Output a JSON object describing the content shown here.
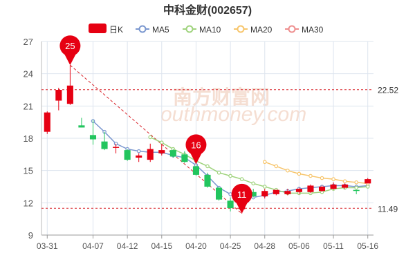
{
  "chart_data": {
    "type": "candlestick",
    "title": "中科金财(002657)",
    "colors": {
      "up": "#e60012",
      "down": "#22c55e",
      "ma5": "#7a97cf",
      "ma10": "#9fd37d",
      "ma20": "#f7c56b",
      "ma30": "#ee8e8e",
      "ref_line": "#d9232a",
      "grid": "#dde4ee",
      "badge": "#e60012"
    },
    "legend": [
      {
        "key": "kline",
        "label": "日K"
      },
      {
        "key": "ma5",
        "label": "MA5"
      },
      {
        "key": "ma10",
        "label": "MA10"
      },
      {
        "key": "ma20",
        "label": "MA20"
      },
      {
        "key": "ma30",
        "label": "MA30"
      }
    ],
    "legend_placement": "top-center",
    "ylim": [
      9,
      27
    ],
    "yticks": [
      9,
      12,
      15,
      18,
      21,
      24,
      27
    ],
    "xticks": [
      {
        "label": "03-31",
        "index": 0
      },
      {
        "label": "04-07",
        "index": 4
      },
      {
        "label": "04-12",
        "index": 7
      },
      {
        "label": "04-15",
        "index": 10
      },
      {
        "label": "04-20",
        "index": 13
      },
      {
        "label": "04-25",
        "index": 16
      },
      {
        "label": "04-28",
        "index": 19
      },
      {
        "label": "05-06",
        "index": 22
      },
      {
        "label": "05-11",
        "index": 25
      },
      {
        "label": "05-16",
        "index": 28
      }
    ],
    "grid": true,
    "candles": [
      {
        "o": 18.6,
        "c": 20.4,
        "h": 20.5,
        "l": 18.4
      },
      {
        "o": 21.5,
        "c": 22.5,
        "h": 22.7,
        "l": 20.6
      },
      {
        "o": 21.2,
        "c": 22.9,
        "h": 24.8,
        "l": 21.1
      },
      {
        "o": 19.2,
        "c": 19.0,
        "h": 19.9,
        "l": 19.0
      },
      {
        "o": 18.3,
        "c": 17.9,
        "h": 19.7,
        "l": 17.4
      },
      {
        "o": 17.7,
        "c": 17.0,
        "h": 18.6,
        "l": 16.9
      },
      {
        "o": 17.2,
        "c": 17.2,
        "h": 17.5,
        "l": 16.6
      },
      {
        "o": 16.9,
        "c": 16.0,
        "h": 17.0,
        "l": 15.9
      },
      {
        "o": 16.2,
        "c": 16.4,
        "h": 16.6,
        "l": 15.8
      },
      {
        "o": 16.0,
        "c": 17.0,
        "h": 17.5,
        "l": 15.8
      },
      {
        "o": 16.6,
        "c": 16.9,
        "h": 17.5,
        "l": 16.4
      },
      {
        "o": 16.9,
        "c": 16.3,
        "h": 17.0,
        "l": 16.2
      },
      {
        "o": 16.5,
        "c": 15.8,
        "h": 16.8,
        "l": 15.7
      },
      {
        "o": 15.4,
        "c": 14.6,
        "h": 15.6,
        "l": 14.5
      },
      {
        "o": 14.6,
        "c": 13.5,
        "h": 14.8,
        "l": 13.4
      },
      {
        "o": 13.4,
        "c": 12.3,
        "h": 13.5,
        "l": 12.2
      },
      {
        "o": 12.2,
        "c": 11.5,
        "h": 12.5,
        "l": 11.2
      },
      {
        "o": 11.4,
        "c": 12.5,
        "h": 12.8,
        "l": 11.0
      },
      {
        "o": 13.0,
        "c": 12.6,
        "h": 13.3,
        "l": 12.5
      },
      {
        "o": 12.6,
        "c": 13.1,
        "h": 13.3,
        "l": 12.4
      },
      {
        "o": 12.8,
        "c": 13.2,
        "h": 13.2,
        "l": 12.7
      },
      {
        "o": 12.8,
        "c": 13.1,
        "h": 13.3,
        "l": 12.7
      },
      {
        "o": 13.0,
        "c": 13.3,
        "h": 13.4,
        "l": 12.8
      },
      {
        "o": 13.0,
        "c": 13.6,
        "h": 13.7,
        "l": 12.9
      },
      {
        "o": 13.1,
        "c": 13.5,
        "h": 13.6,
        "l": 13.0
      },
      {
        "o": 13.3,
        "c": 13.7,
        "h": 13.9,
        "l": 13.2
      },
      {
        "o": 13.4,
        "c": 13.7,
        "h": 13.8,
        "l": 13.3
      },
      {
        "o": 13.2,
        "c": 13.1,
        "h": 13.2,
        "l": 12.8
      },
      {
        "o": 13.8,
        "c": 14.2,
        "h": 14.3,
        "l": 13.8
      }
    ],
    "ma5": [
      null,
      null,
      null,
      null,
      19.6,
      18.6,
      17.5,
      17.0,
      16.8,
      16.7,
      16.7,
      16.4,
      16.2,
      15.5,
      14.5,
      13.4,
      12.8,
      12.5,
      12.5,
      12.7,
      13.0,
      13.1,
      13.3,
      13.4,
      13.5,
      13.6,
      13.6,
      13.5,
      13.6
    ],
    "ma10": [
      null,
      null,
      null,
      null,
      null,
      null,
      null,
      null,
      null,
      18.1,
      17.6,
      17.0,
      16.5,
      15.9,
      15.4,
      14.8,
      14.5,
      14.2,
      13.8,
      13.5,
      13.2,
      12.9,
      12.9,
      12.9,
      13.0,
      13.3,
      13.4,
      13.4,
      13.5
    ],
    "ma20": [
      null,
      null,
      null,
      null,
      null,
      null,
      null,
      null,
      null,
      null,
      null,
      null,
      null,
      null,
      null,
      null,
      null,
      null,
      null,
      15.8,
      15.4,
      15.0,
      14.7,
      14.5,
      14.3,
      14.2,
      14.0,
      13.9,
      13.8
    ],
    "ma30": [],
    "ref_lines": [
      {
        "value": 22.52,
        "label": "22.52"
      },
      {
        "value": 11.49,
        "label": "11.49"
      }
    ],
    "badges": [
      {
        "index": 2,
        "value": 24.8,
        "label": "25"
      },
      {
        "index": 13,
        "value": 15.6,
        "label": "16"
      },
      {
        "index": 17,
        "value": 11.0,
        "label": "11"
      }
    ],
    "trend_line": {
      "from_index": 2,
      "from_value": 24.8,
      "to_index": 17,
      "to_value": 11.0
    },
    "watermark": {
      "cn": "南方财富网",
      "en": "outhmoney.com"
    }
  }
}
